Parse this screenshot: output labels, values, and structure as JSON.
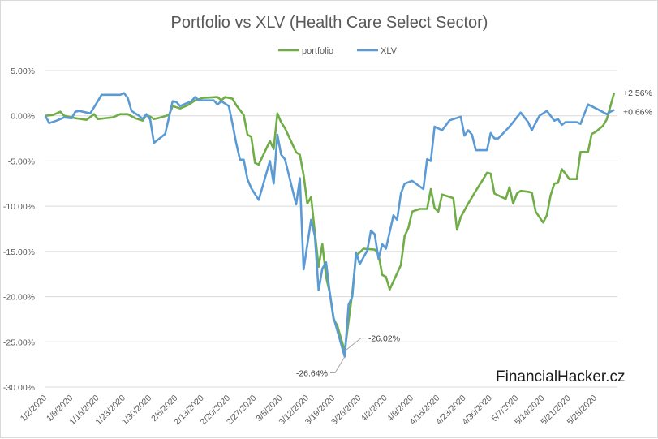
{
  "chart_data": {
    "type": "line",
    "title": "Portfolio vs XLV (Health Care Select Sector)",
    "xlabel": "",
    "ylabel": "",
    "x_unit": "days since 1/2/2020",
    "xlim": [
      0,
      152
    ],
    "ylim": [
      -30,
      5
    ],
    "yticks": [
      5,
      0,
      -5,
      -10,
      -15,
      -20,
      -25,
      -30
    ],
    "ytick_labels": [
      "5.00%",
      "0.00%",
      "-5.00%",
      "-10.00%",
      "-15.00%",
      "-20.00%",
      "-25.00%",
      "-30.00%"
    ],
    "xtick_step_days": 7,
    "xtick_labels": [
      "1/2/2020",
      "1/9/2020",
      "1/16/2020",
      "1/23/2020",
      "1/30/2020",
      "2/6/2020",
      "2/13/2020",
      "2/20/2020",
      "2/27/2020",
      "3/5/2020",
      "3/12/2020",
      "3/19/2020",
      "3/26/2020",
      "4/2/2020",
      "4/9/2020",
      "4/16/2020",
      "4/23/2020",
      "4/30/2020",
      "5/7/2020",
      "5/14/2020",
      "5/21/2020",
      "5/28/2020"
    ],
    "grid": true,
    "legend_position": "top",
    "series": [
      {
        "name": "portfolio",
        "color": "#70ad47",
        "points": [
          [
            0,
            0
          ],
          [
            2,
            0.09
          ],
          [
            4,
            0.45
          ],
          [
            5,
            0
          ],
          [
            8,
            -0.27
          ],
          [
            11,
            -0.45
          ],
          [
            13,
            0.18
          ],
          [
            14,
            -0.36
          ],
          [
            18,
            -0.18
          ],
          [
            20,
            0.18
          ],
          [
            22,
            0.18
          ],
          [
            24,
            -0.27
          ],
          [
            26,
            -0.54
          ],
          [
            27,
            0.09
          ],
          [
            28,
            -0.09
          ],
          [
            29,
            -0.36
          ],
          [
            30,
            -0.27
          ],
          [
            33,
            0.09
          ],
          [
            34,
            1.08
          ],
          [
            36,
            0.81
          ],
          [
            38,
            1.17
          ],
          [
            40,
            1.71
          ],
          [
            42,
            1.98
          ],
          [
            46,
            2.07
          ],
          [
            47,
            1.71
          ],
          [
            48,
            2.07
          ],
          [
            50,
            1.89
          ],
          [
            51,
            1.17
          ],
          [
            53,
            0.09
          ],
          [
            54,
            -2.07
          ],
          [
            55,
            -2.33
          ],
          [
            56,
            -5.21
          ],
          [
            57,
            -5.39
          ],
          [
            60,
            -2.78
          ],
          [
            61,
            -3.68
          ],
          [
            62,
            0.27
          ],
          [
            63,
            -0.72
          ],
          [
            64,
            -1.35
          ],
          [
            67,
            -4.04
          ],
          [
            68,
            -4.31
          ],
          [
            69,
            -6.55
          ],
          [
            70,
            -9.7
          ],
          [
            71,
            -8.98
          ],
          [
            72,
            -12.9
          ],
          [
            73,
            -16.7
          ],
          [
            74,
            -14.2
          ],
          [
            75,
            -17.8
          ],
          [
            76,
            -19.6
          ],
          [
            77,
            -22.5
          ],
          [
            78,
            -23.2
          ],
          [
            80,
            -26.02
          ],
          [
            81,
            -22.7
          ],
          [
            82,
            -19.6
          ],
          [
            83,
            -15.5
          ],
          [
            85,
            -14.7
          ],
          [
            88,
            -14.8
          ],
          [
            89,
            -15.3
          ],
          [
            90,
            -17.6
          ],
          [
            91,
            -17.8
          ],
          [
            92,
            -19.2
          ],
          [
            95,
            -16.5
          ],
          [
            96,
            -13.3
          ],
          [
            97,
            -12.4
          ],
          [
            98,
            -10.6
          ],
          [
            100,
            -10.3
          ],
          [
            102,
            -10.3
          ],
          [
            103,
            -8.1
          ],
          [
            104,
            -10.2
          ],
          [
            105,
            -10.6
          ],
          [
            106,
            -8.7
          ],
          [
            109,
            -9.1
          ],
          [
            110,
            -12.6
          ],
          [
            111,
            -11.2
          ],
          [
            113,
            -9.7
          ],
          [
            115,
            -8.3
          ],
          [
            117,
            -7.0
          ],
          [
            118,
            -6.3
          ],
          [
            119,
            -6.4
          ],
          [
            120,
            -8.6
          ],
          [
            123,
            -9.2
          ],
          [
            124,
            -7.9
          ],
          [
            125,
            -9.7
          ],
          [
            126,
            -8.6
          ],
          [
            127,
            -8.3
          ],
          [
            129,
            -8.4
          ],
          [
            130,
            -8.5
          ],
          [
            131,
            -10.6
          ],
          [
            133,
            -11.8
          ],
          [
            134,
            -11.0
          ],
          [
            135,
            -8.8
          ],
          [
            136,
            -7.5
          ],
          [
            137,
            -7.4
          ],
          [
            138,
            -5.9
          ],
          [
            139,
            -6.4
          ],
          [
            140,
            -7.0
          ],
          [
            142,
            -7.0
          ],
          [
            143,
            -4.0
          ],
          [
            145,
            -4.0
          ],
          [
            146,
            -2.0
          ],
          [
            147,
            -1.8
          ],
          [
            149,
            -1.1
          ],
          [
            150,
            -0.4
          ],
          [
            152,
            2.56
          ]
        ]
      },
      {
        "name": "XLV",
        "color": "#5b9bd5",
        "points": [
          [
            0,
            0
          ],
          [
            1,
            -0.81
          ],
          [
            3,
            -0.54
          ],
          [
            5,
            -0.18
          ],
          [
            7,
            -0.27
          ],
          [
            8,
            0.45
          ],
          [
            9,
            0.54
          ],
          [
            12,
            0.27
          ],
          [
            14,
            1.62
          ],
          [
            15,
            2.33
          ],
          [
            20,
            2.33
          ],
          [
            21,
            2.51
          ],
          [
            22,
            1.98
          ],
          [
            23,
            0.54
          ],
          [
            25,
            0
          ],
          [
            26,
            -0.36
          ],
          [
            27,
            0.18
          ],
          [
            28,
            -0.4
          ],
          [
            29,
            -3.0
          ],
          [
            32,
            -2.0
          ],
          [
            34,
            1.62
          ],
          [
            35,
            1.53
          ],
          [
            36,
            1.08
          ],
          [
            39,
            1.62
          ],
          [
            40,
            2.07
          ],
          [
            41,
            1.71
          ],
          [
            45,
            1.71
          ],
          [
            46,
            1.26
          ],
          [
            47,
            1.62
          ],
          [
            49,
            1.08
          ],
          [
            50,
            -0.9
          ],
          [
            51,
            -3.05
          ],
          [
            52,
            -4.85
          ],
          [
            53,
            -4.85
          ],
          [
            54,
            -7.0
          ],
          [
            55,
            -8.0
          ],
          [
            57,
            -9.3
          ],
          [
            60,
            -5.0
          ],
          [
            61,
            -7.5
          ],
          [
            62,
            -2.1
          ],
          [
            63,
            -4.3
          ],
          [
            64,
            -4.8
          ],
          [
            67,
            -9.8
          ],
          [
            68,
            -6.9
          ],
          [
            69,
            -17.0
          ],
          [
            71,
            -11.5
          ],
          [
            72,
            -13.3
          ],
          [
            73,
            -19.3
          ],
          [
            74,
            -16.9
          ],
          [
            75,
            -16.2
          ],
          [
            76,
            -19.6
          ],
          [
            77,
            -22.3
          ],
          [
            80,
            -26.64
          ],
          [
            81,
            -20.9
          ],
          [
            82,
            -20.0
          ],
          [
            83,
            -15.1
          ],
          [
            84,
            -16.4
          ],
          [
            86,
            -14.9
          ],
          [
            87,
            -12.7
          ],
          [
            88,
            -13.1
          ],
          [
            89,
            -15.8
          ],
          [
            90,
            -14.2
          ],
          [
            91,
            -14.7
          ],
          [
            93,
            -11.0
          ],
          [
            94,
            -11.5
          ],
          [
            95,
            -8.6
          ],
          [
            96,
            -7.5
          ],
          [
            98,
            -7.2
          ],
          [
            101,
            -8.1
          ],
          [
            102,
            -4.8
          ],
          [
            103,
            -5.0
          ],
          [
            104,
            -1.2
          ],
          [
            106,
            -1.6
          ],
          [
            108,
            -0.5
          ],
          [
            111,
            -0.1
          ],
          [
            112,
            -2.2
          ],
          [
            113,
            -1.6
          ],
          [
            114,
            -2.1
          ],
          [
            115,
            -3.8
          ],
          [
            118,
            -3.8
          ],
          [
            119,
            -1.9
          ],
          [
            120,
            -2.5
          ],
          [
            121,
            -2.5
          ],
          [
            124,
            -1.2
          ],
          [
            125,
            -0.7
          ],
          [
            127,
            0.36
          ],
          [
            129,
            -0.7
          ],
          [
            130,
            -1.6
          ],
          [
            132,
            0
          ],
          [
            134,
            0.54
          ],
          [
            136,
            -0.54
          ],
          [
            137,
            -0.36
          ],
          [
            138,
            -1.0
          ],
          [
            139,
            -0.7
          ],
          [
            142,
            -0.7
          ],
          [
            143,
            -0.9
          ],
          [
            145,
            1.26
          ],
          [
            148,
            0.63
          ],
          [
            150,
            0.18
          ],
          [
            151,
            0.45
          ],
          [
            152,
            0.66
          ]
        ]
      }
    ],
    "annotations": [
      {
        "text": "+2.56%",
        "series": "portfolio",
        "day": 152,
        "value": 2.56
      },
      {
        "text": "+0.66%",
        "series": "XLV",
        "day": 152,
        "value": 0.66
      },
      {
        "text": "-26.02%",
        "series": "portfolio",
        "day": 80,
        "value": -26.02
      },
      {
        "text": "-26.64%",
        "series": "XLV",
        "day": 80,
        "value": -26.64
      }
    ],
    "watermark": "FinancialHacker.cz"
  }
}
